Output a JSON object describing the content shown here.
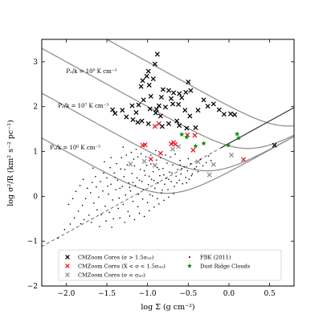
{
  "chart_data": {
    "type": "scatter",
    "xlabel": "log Σ (g cm⁻²)",
    "ylabel": "log σ²/R (km² s⁻² pc⁻¹)",
    "xlim": [
      -2.3,
      0.8
    ],
    "ylim": [
      -2.0,
      3.5
    ],
    "x_ticks": [
      "−2.0",
      "−1.5",
      "−1.0",
      "−0.5",
      "0.0",
      "0.5"
    ],
    "y_ticks": [
      "−2",
      "−1",
      "0",
      "1",
      "2",
      "3"
    ],
    "x_tick_values": [
      -2.0,
      -1.5,
      -1.0,
      -0.5,
      0.0,
      0.5
    ],
    "y_tick_values": [
      -2,
      -1,
      0,
      1,
      2,
      3
    ],
    "grid": false,
    "legend_position": "bottom",
    "pressure_curves": [
      {
        "label": "Pₑ/k = 10⁸ K cm⁻³",
        "P": 100,
        "label_x": -2.0,
        "label_y": 2.75
      },
      {
        "label": "Pₑ/k = 10⁷ K cm⁻³",
        "P": 10,
        "label_x": -2.1,
        "label_y": 1.98
      },
      {
        "label": "Pₑ/k = 10⁶ K cm⁻³",
        "P": 1,
        "label_x": -2.2,
        "label_y": 1.05
      },
      {
        "label": "",
        "P": 0.1
      }
    ],
    "virial_line": {
      "x": [
        -2.3,
        0.8
      ],
      "y": [
        -1.12,
        1.98
      ]
    },
    "series": [
      {
        "name": "CMZoom Cores (σ > 1.5σ_int)",
        "marker": "x",
        "color": "#000000",
        "points": [
          [
            -0.88,
            3.17
          ],
          [
            -0.91,
            2.95
          ],
          [
            -0.99,
            2.79
          ],
          [
            -1.01,
            2.68
          ],
          [
            -0.93,
            2.62
          ],
          [
            -1.06,
            2.58
          ],
          [
            -0.98,
            2.48
          ],
          [
            -1.08,
            2.45
          ],
          [
            -0.81,
            2.38
          ],
          [
            -0.74,
            2.36
          ],
          [
            -0.68,
            2.31
          ],
          [
            -0.61,
            2.29
          ],
          [
            -0.53,
            2.32
          ],
          [
            -0.47,
            2.36
          ],
          [
            -0.58,
            2.2
          ],
          [
            -0.71,
            2.18
          ],
          [
            -0.83,
            2.21
          ],
          [
            -0.96,
            2.23
          ],
          [
            -1.05,
            2.15
          ],
          [
            -1.11,
            2.04
          ],
          [
            -1.19,
            2.02
          ],
          [
            -1.31,
            1.92
          ],
          [
            -1.4,
            1.85
          ],
          [
            -1.43,
            1.93
          ],
          [
            -1.26,
            1.77
          ],
          [
            -1.18,
            1.71
          ],
          [
            -1.07,
            1.68
          ],
          [
            -0.99,
            1.62
          ],
          [
            -0.97,
            1.95
          ],
          [
            -0.89,
            1.94
          ],
          [
            -0.86,
            2.02
          ],
          [
            -0.78,
            1.99
          ],
          [
            -0.69,
            2.06
          ],
          [
            -0.62,
            2.05
          ],
          [
            -0.54,
            1.92
          ],
          [
            -0.48,
            1.79
          ],
          [
            -0.38,
            1.92
          ],
          [
            -0.31,
            2.15
          ],
          [
            -0.26,
            2.01
          ],
          [
            -0.19,
            2.06
          ],
          [
            -0.12,
            1.93
          ],
          [
            -0.06,
            1.83
          ],
          [
            0.02,
            1.84
          ],
          [
            0.07,
            1.82
          ],
          [
            -0.41,
            1.53
          ],
          [
            -0.52,
            1.52
          ],
          [
            -0.61,
            1.58
          ],
          [
            -0.64,
            1.68
          ],
          [
            -0.74,
            1.62
          ],
          [
            -0.82,
            1.56
          ],
          [
            -0.9,
            1.86
          ],
          [
            -0.84,
            1.79
          ],
          [
            -1.12,
            1.65
          ],
          [
            -1.14,
            1.87
          ],
          [
            0.56,
            1.14
          ],
          [
            -0.5,
            2.55
          ]
        ]
      },
      {
        "name": "CMZoom Cores (X < σ < 1.5σ_int)",
        "marker": "x",
        "color": "#e8151b",
        "points": [
          [
            -1.06,
            1.14
          ],
          [
            -1.03,
            1.15
          ],
          [
            -0.84,
            0.96
          ],
          [
            -0.91,
            1.56
          ],
          [
            -0.86,
            1.62
          ],
          [
            -0.71,
            1.17
          ],
          [
            -0.66,
            1.16
          ],
          [
            -0.68,
            1.2
          ],
          [
            -0.51,
            1.37
          ],
          [
            -0.44,
            1.03
          ],
          [
            -0.42,
            1.36
          ],
          [
            0.18,
            0.82
          ],
          [
            -0.96,
            0.83
          ]
        ]
      },
      {
        "name": "CMZoom Cores (σ < σ_int)",
        "marker": "x",
        "color": "#8c8c8c",
        "points": [
          [
            -1.21,
            0.72
          ],
          [
            -1.04,
            0.78
          ],
          [
            -0.91,
            0.69
          ],
          [
            -0.69,
            1.05
          ],
          [
            -0.62,
            1.11
          ],
          [
            -0.38,
            0.77
          ],
          [
            -0.24,
            0.48
          ],
          [
            -0.19,
            0.71
          ],
          [
            0.03,
            0.92
          ]
        ]
      },
      {
        "name": "FBK (2011)",
        "marker": "dot",
        "color": "#000000",
        "points": [
          [
            -2.1,
            -0.93
          ],
          [
            -2.02,
            -0.74
          ],
          [
            -1.95,
            -0.62
          ],
          [
            -1.9,
            -0.48
          ],
          [
            -1.85,
            -0.33
          ],
          [
            -1.8,
            -0.2
          ],
          [
            -1.76,
            -0.05
          ],
          [
            -1.72,
            -0.42
          ],
          [
            -1.7,
            0.08
          ],
          [
            -1.66,
            -0.15
          ],
          [
            -1.63,
            0.21
          ],
          [
            -1.6,
            -0.02
          ],
          [
            -1.58,
            0.33
          ],
          [
            -1.55,
            0.12
          ],
          [
            -1.52,
            -0.22
          ],
          [
            -1.5,
            0.41
          ],
          [
            -1.48,
            0.05
          ],
          [
            -1.45,
            0.27
          ],
          [
            -1.43,
            -0.08
          ],
          [
            -1.41,
            0.52
          ],
          [
            -1.39,
            0.15
          ],
          [
            -1.37,
            0.36
          ],
          [
            -1.35,
            -0.04
          ],
          [
            -1.33,
            0.61
          ],
          [
            -1.31,
            0.22
          ],
          [
            -1.29,
            0.44
          ],
          [
            -1.27,
            0.03
          ],
          [
            -1.25,
            0.7
          ],
          [
            -1.23,
            0.3
          ],
          [
            -1.21,
            0.12
          ],
          [
            -1.19,
            0.51
          ],
          [
            -1.17,
            0.83
          ],
          [
            -1.15,
            0.24
          ],
          [
            -1.13,
            0.41
          ],
          [
            -1.11,
            0.05
          ],
          [
            -1.09,
            0.6
          ],
          [
            -1.07,
            0.33
          ],
          [
            -1.05,
            0.15
          ],
          [
            -1.03,
            0.47
          ],
          [
            -1.01,
            0.69
          ],
          [
            -0.99,
            0.26
          ],
          [
            -0.97,
            0.04
          ],
          [
            -0.95,
            0.38
          ],
          [
            -0.93,
            0.55
          ],
          [
            -0.91,
            0.18
          ],
          [
            -0.89,
            0.81
          ],
          [
            -0.87,
            0.3
          ],
          [
            -0.85,
            0.46
          ],
          [
            -0.83,
            0.08
          ],
          [
            -0.81,
            0.62
          ],
          [
            -0.79,
            0.27
          ],
          [
            -0.77,
            0.4
          ],
          [
            -0.75,
            0.15
          ],
          [
            -0.73,
            0.54
          ],
          [
            -0.71,
            0.33
          ],
          [
            -0.69,
            0.7
          ],
          [
            -0.67,
            0.22
          ],
          [
            -0.65,
            0.45
          ],
          [
            -0.63,
            0.6
          ],
          [
            -0.61,
            0.36
          ],
          [
            -0.59,
            0.5
          ],
          [
            -0.57,
            0.28
          ],
          [
            -0.55,
            0.66
          ],
          [
            -0.53,
            0.42
          ],
          [
            -0.51,
            0.57
          ],
          [
            -0.49,
            0.38
          ],
          [
            -0.47,
            0.73
          ],
          [
            -0.45,
            0.5
          ],
          [
            -0.42,
            0.62
          ],
          [
            -0.38,
            0.55
          ],
          [
            -0.35,
            0.82
          ],
          [
            -0.32,
            0.68
          ],
          [
            -0.28,
            0.75
          ],
          [
            -0.25,
            0.9
          ],
          [
            -0.22,
            0.8
          ],
          [
            -1.62,
            -0.3
          ],
          [
            -1.57,
            -0.41
          ],
          [
            -1.47,
            -0.36
          ],
          [
            -1.42,
            -0.5
          ],
          [
            -1.36,
            -0.27
          ],
          [
            -1.3,
            -0.18
          ],
          [
            -1.24,
            -0.34
          ],
          [
            -1.18,
            -0.11
          ],
          [
            -1.12,
            -0.23
          ],
          [
            -1.06,
            -0.06
          ],
          [
            -1.0,
            -0.14
          ],
          [
            -0.94,
            0.01
          ],
          [
            -0.88,
            -0.05
          ],
          [
            -0.82,
            0.14
          ],
          [
            -1.74,
            0.18
          ],
          [
            -1.68,
            0.31
          ],
          [
            -1.64,
            0.44
          ],
          [
            -1.54,
            0.52
          ],
          [
            -1.46,
            0.64
          ],
          [
            -1.38,
            0.73
          ],
          [
            -1.32,
            0.86
          ],
          [
            -1.26,
            0.92
          ],
          [
            -1.2,
            0.98
          ],
          [
            -1.14,
            1.05
          ],
          [
            -1.08,
            0.95
          ],
          [
            -1.02,
            0.88
          ],
          [
            -0.96,
            0.92
          ],
          [
            -0.9,
            1.02
          ],
          [
            -0.84,
            0.86
          ],
          [
            -0.78,
            0.92
          ],
          [
            -0.72,
            0.88
          ],
          [
            -0.66,
            0.94
          ],
          [
            -0.6,
            0.8
          ],
          [
            -1.82,
            -0.61
          ],
          [
            -1.78,
            -0.52
          ],
          [
            -1.69,
            -0.58
          ],
          [
            -1.59,
            -0.67
          ],
          [
            -1.51,
            -0.55
          ],
          [
            -1.44,
            -0.69
          ],
          [
            -1.34,
            -0.48
          ],
          [
            -1.28,
            -0.58
          ],
          [
            -1.22,
            -0.44
          ],
          [
            -1.16,
            -0.52
          ],
          [
            -1.1,
            -0.38
          ],
          [
            -1.04,
            -0.45
          ],
          [
            -0.98,
            -0.32
          ],
          [
            -0.92,
            -0.24
          ],
          [
            -0.86,
            -0.17
          ],
          [
            -0.8,
            -0.09
          ],
          [
            -0.74,
            -0.02
          ],
          [
            -0.68,
            0.06
          ],
          [
            -1.97,
            -0.18
          ],
          [
            -1.92,
            -0.05
          ],
          [
            -1.88,
            0.11
          ],
          [
            -1.83,
            0.24
          ],
          [
            -1.79,
            0.38
          ],
          [
            -1.67,
            0.63
          ],
          [
            -1.53,
            0.77
          ],
          [
            -1.49,
            0.23
          ],
          [
            -1.4,
            0.42
          ],
          [
            -1.34,
            0.18
          ],
          [
            -1.28,
            0.6
          ],
          [
            -1.22,
            0.2
          ],
          [
            -1.16,
            0.68
          ],
          [
            -1.1,
            0.36
          ],
          [
            -1.04,
            0.57
          ],
          [
            -0.98,
            0.45
          ],
          [
            -0.92,
            0.35
          ],
          [
            -0.86,
            0.6
          ],
          [
            -0.8,
            0.48
          ],
          [
            -0.74,
            0.38
          ],
          [
            -0.7,
            0.52
          ],
          [
            -0.64,
            0.3
          ],
          [
            -0.58,
            0.62
          ],
          [
            -0.52,
            0.3
          ],
          [
            -0.46,
            0.46
          ],
          [
            -0.4,
            0.66
          ],
          [
            -1.45,
            0.86
          ],
          [
            -1.3,
            1.1
          ],
          [
            -1.18,
            0.31
          ],
          [
            -1.12,
            0.88
          ],
          [
            -0.96,
            0.72
          ],
          [
            -0.88,
            0.64
          ],
          [
            -0.76,
            0.74
          ],
          [
            -0.6,
            0.7
          ],
          [
            -0.5,
            0.84
          ]
        ]
      },
      {
        "name": "Dust Ridge Clouds",
        "marker": "star",
        "color": "#0b8a0b",
        "points": [
          [
            -0.58,
            1.38
          ],
          [
            -0.52,
            1.32
          ],
          [
            -0.31,
            1.18
          ],
          [
            -0.01,
            1.14
          ],
          [
            0.1,
            1.39
          ],
          [
            0.12,
            1.3
          ],
          [
            -0.41,
            1.12
          ]
        ]
      }
    ]
  }
}
